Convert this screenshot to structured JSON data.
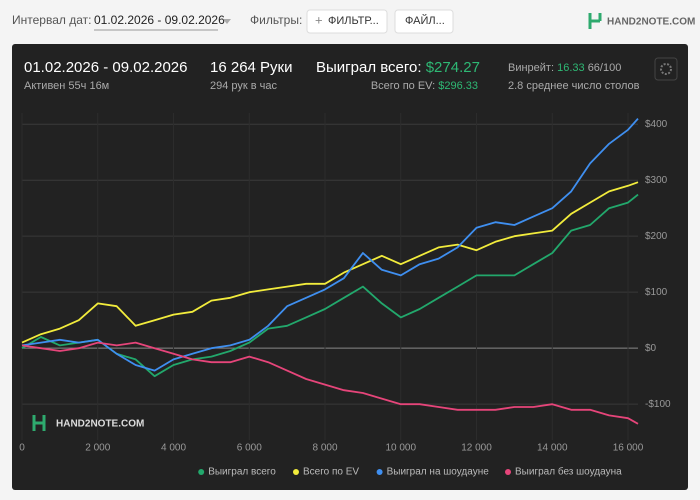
{
  "toolbar": {
    "date_label": "Интервал дат:",
    "date_range": "01.02.2026 - 09.02.2026",
    "filters_label": "Фильтры:",
    "filter_button": "ФИЛЬТР...",
    "file_button": "ФАЙЛ...",
    "logo": "HAND2NOTE.COM"
  },
  "summary": {
    "period": "01.02.2026 - 09.02.2026",
    "active": "Активен 55ч 16м",
    "hands": "16 264 Руки",
    "hands_per_hour": "294 рук в час",
    "won_label": "Выиграл всего:",
    "won_value": "$274.27",
    "ev_label": "Всего по EV:",
    "ev_value": "$296.33",
    "winrate_label": "Винрейт:",
    "winrate_value": "16.33",
    "winrate_unit": "66/100",
    "tables": "2.8 среднее число столов"
  },
  "chart_data": {
    "type": "line",
    "watermark": "HAND2NOTE.COM",
    "legend": "bottom",
    "grid": true,
    "x": [
      0,
      500,
      1000,
      1500,
      2000,
      2500,
      3000,
      3500,
      4000,
      4500,
      5000,
      5500,
      6000,
      6500,
      7000,
      7500,
      8000,
      8500,
      9000,
      9500,
      10000,
      10500,
      11000,
      11500,
      12000,
      12500,
      13000,
      13500,
      14000,
      14500,
      15000,
      15500,
      16000,
      16264
    ],
    "xlim": [
      0,
      16264
    ],
    "xticks": [
      0,
      {
        "value": 2000,
        "label": "2 000"
      },
      {
        "value": 4000,
        "label": "4 000"
      },
      {
        "value": 6000,
        "label": "6 000"
      },
      {
        "value": 8000,
        "label": "8 000"
      },
      {
        "value": 10000,
        "label": "10 000"
      },
      {
        "value": 12000,
        "label": "12 000"
      },
      {
        "value": 14000,
        "label": "14 000"
      },
      {
        "value": 16000,
        "label": "16 000"
      }
    ],
    "ylim": [
      -164,
      420
    ],
    "yticks": [
      {
        "value": -100,
        "label": "-$100"
      },
      {
        "value": 0,
        "label": "$0"
      },
      {
        "value": 100,
        "label": "$100"
      },
      {
        "value": 200,
        "label": "$200"
      },
      {
        "value": 300,
        "label": "$300"
      },
      {
        "value": 400,
        "label": "$400"
      }
    ],
    "series": [
      {
        "name": "Выиграл всего",
        "color": "#22a86c",
        "values": [
          0,
          20,
          5,
          10,
          15,
          -10,
          -20,
          -50,
          -30,
          -20,
          -15,
          -5,
          10,
          35,
          40,
          55,
          70,
          90,
          110,
          80,
          55,
          70,
          90,
          110,
          130,
          130,
          130,
          150,
          170,
          210,
          220,
          250,
          260,
          274.27
        ]
      },
      {
        "name": "Всего по EV",
        "color": "#f2ec3c",
        "values": [
          10,
          25,
          35,
          50,
          80,
          75,
          40,
          50,
          60,
          65,
          85,
          90,
          100,
          105,
          110,
          115,
          115,
          135,
          150,
          165,
          150,
          165,
          180,
          185,
          175,
          190,
          200,
          205,
          210,
          240,
          260,
          280,
          290,
          296.33
        ]
      },
      {
        "name": "Выиграл на шоудауне",
        "color": "#3f8ff0",
        "values": [
          5,
          10,
          15,
          10,
          15,
          -10,
          -30,
          -40,
          -20,
          -10,
          0,
          5,
          15,
          40,
          75,
          90,
          105,
          125,
          170,
          140,
          130,
          150,
          160,
          180,
          215,
          225,
          220,
          235,
          250,
          280,
          330,
          365,
          390,
          410
        ]
      },
      {
        "name": "Выиграл без шоудауна",
        "color": "#e6457a",
        "values": [
          5,
          0,
          -5,
          0,
          10,
          5,
          10,
          0,
          -10,
          -20,
          -25,
          -25,
          -15,
          -25,
          -40,
          -55,
          -65,
          -75,
          -80,
          -90,
          -100,
          -100,
          -105,
          -110,
          -110,
          -110,
          -105,
          -105,
          -100,
          -110,
          -110,
          -120,
          -125,
          -135
        ]
      }
    ]
  }
}
